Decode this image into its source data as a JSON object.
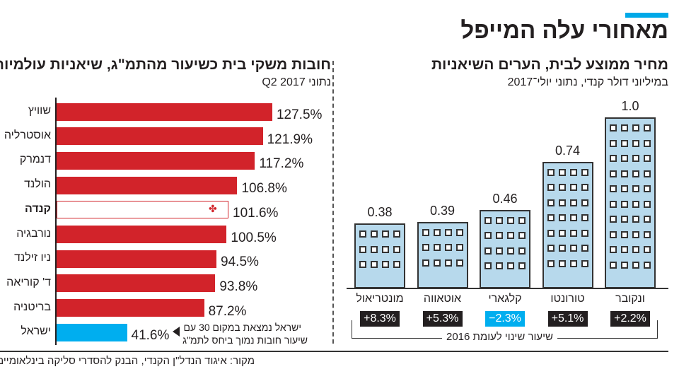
{
  "title": "מאחורי עלה המייפל",
  "accent_color": "#00a9e8",
  "chart_data": [
    {
      "type": "bar",
      "orientation": "horizontal",
      "title": "חובות משקי בית כשיעור מהתמ\"ג, שיאניות עולמיות",
      "subtitle": "נתוני Q2 2017",
      "categories": [
        "שוויץ",
        "אוסטרליה",
        "דנמרק",
        "הולנד",
        "קנדה",
        "נורבגיה",
        "ניו זילנד",
        "ד' קוריאה",
        "בריטניה",
        "ישראל"
      ],
      "values": [
        127.5,
        121.9,
        117.2,
        106.8,
        101.6,
        100.5,
        94.5,
        93.8,
        87.2,
        41.6
      ],
      "value_labels": [
        "127.5%",
        "121.9%",
        "117.2%",
        "106.8%",
        "101.6%",
        "100.5%",
        "94.5%",
        "93.8%",
        "87.2%",
        "41.6%"
      ],
      "unit": "%",
      "colors": {
        "default": "#d2232a",
        "highlight_canada": "#ffffff",
        "israel": "#00aeef"
      },
      "annotation_line1": "ישראל נמצאת במקום 30 עם",
      "annotation_line2": "שיעור חובות נמוך ביחס לתמ\"ג"
    },
    {
      "type": "bar",
      "title": "מחיר ממוצע לבית, הערים השיאניות",
      "subtitle": "במיליוני דולר קנדי, נתוני יולי־2017",
      "categories": [
        "מונטריאול",
        "אוטאווה",
        "קלגארי",
        "טורונטו",
        "ונקובר"
      ],
      "values": [
        0.38,
        0.39,
        0.46,
        0.74,
        1.0
      ],
      "value_labels": [
        "0.38",
        "0.39",
        "0.46",
        "0.74",
        "1.0"
      ],
      "change_labels": [
        "+8.3%",
        "+5.3%",
        "−2.3%",
        "+5.1%",
        "+2.2%"
      ],
      "change_values": [
        8.3,
        5.3,
        -2.3,
        5.1,
        2.2
      ],
      "change_caption": "שיעור שינוי לעומת 2016",
      "colors": {
        "building": "#b7d9ec",
        "positive_badge": "#231f20",
        "negative_badge": "#00aeef"
      }
    }
  ],
  "source": "מקור: איגוד הנדל\"ן הקנדי, הבנק להסדרי סליקה בינלאומיים"
}
